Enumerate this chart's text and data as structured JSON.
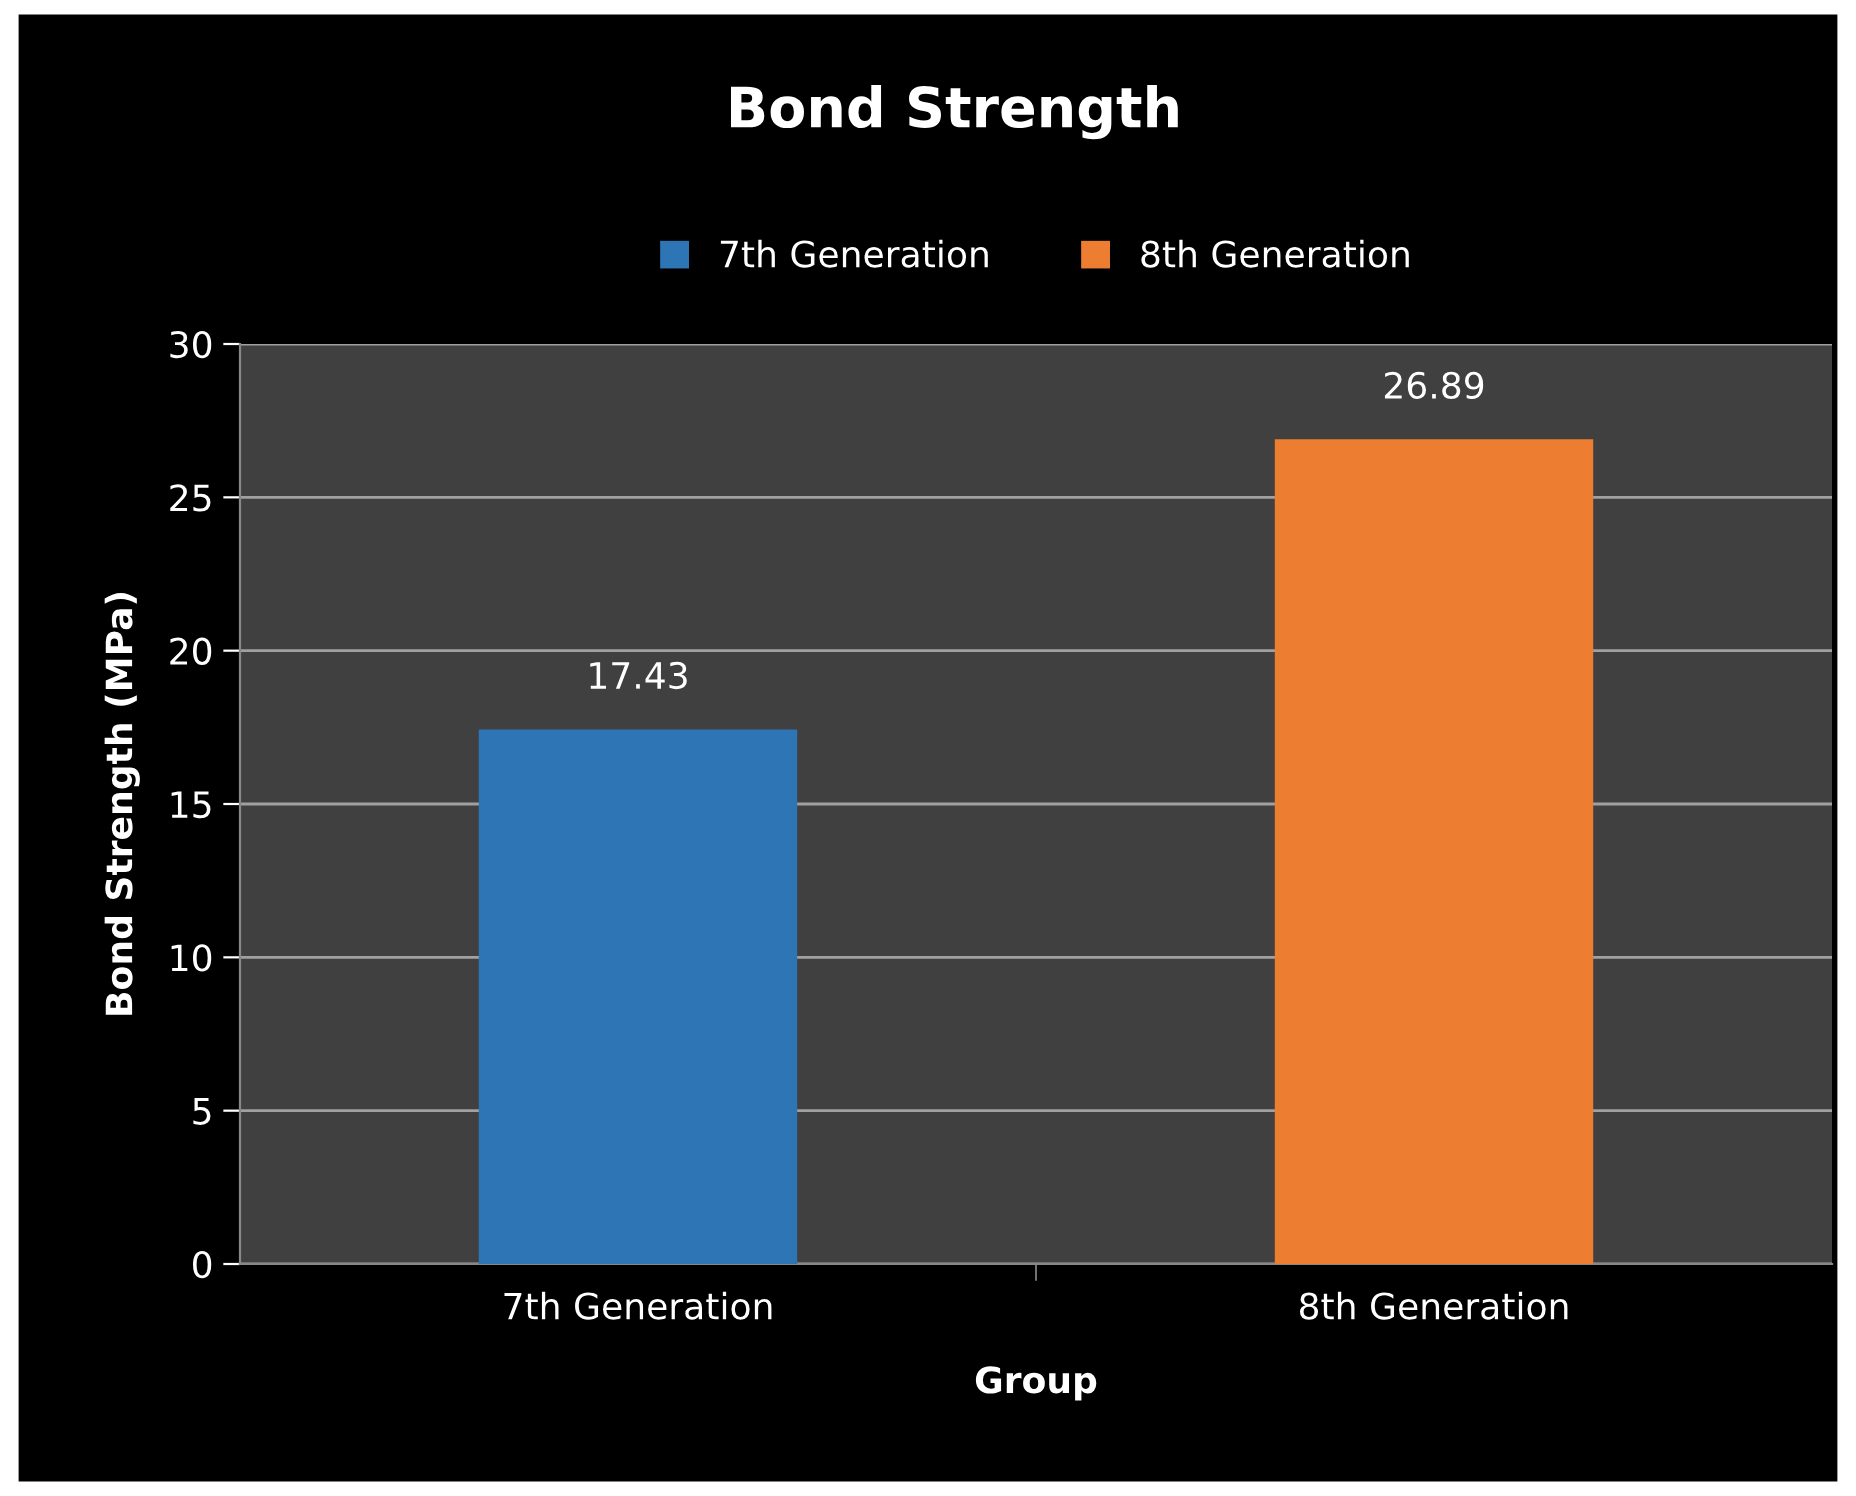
{
  "chart_data": {
    "type": "bar",
    "title": "Bond Strength",
    "xlabel": "Group",
    "ylabel": "Bond Strength (MPa)",
    "categories": [
      "7th Generation",
      "8th Generation"
    ],
    "series": [
      {
        "name": "7th Generation",
        "color": "#2e75b6",
        "values": [
          17.43,
          null
        ]
      },
      {
        "name": "8th Generation",
        "color": "#ed7d31",
        "values": [
          null,
          26.89
        ]
      }
    ],
    "data_labels": true,
    "ylim": [
      0,
      30
    ],
    "yticks": [
      0,
      5,
      10,
      15,
      20,
      25,
      30
    ],
    "grid": "y",
    "legend": "top"
  }
}
